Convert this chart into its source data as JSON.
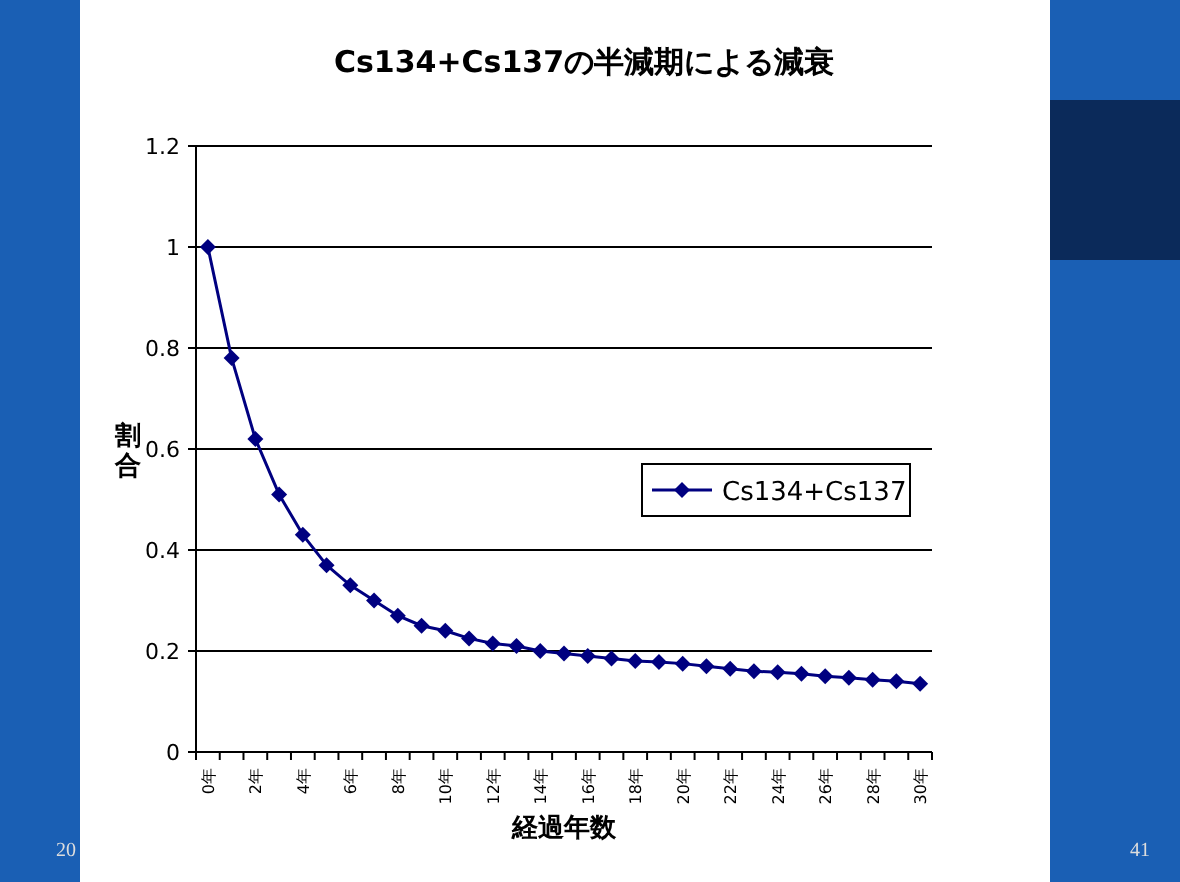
{
  "chart_data": {
    "type": "line",
    "title": "Cs134+Cs137の半減期による減衰",
    "xlabel": "経過年数",
    "ylabel": "割合",
    "categories": [
      "0年",
      null,
      "2年",
      null,
      "4年",
      null,
      "6年",
      null,
      "8年",
      null,
      "10年",
      null,
      "12年",
      null,
      "14年",
      null,
      "16年",
      null,
      "18年",
      null,
      "20年",
      null,
      "22年",
      null,
      "24年",
      null,
      "26年",
      null,
      "28年",
      null,
      "30年"
    ],
    "series": [
      {
        "name": "Cs134+Cs137",
        "color": "#000080",
        "values": [
          1.0,
          0.78,
          0.62,
          0.51,
          0.43,
          0.37,
          0.33,
          0.3,
          0.27,
          0.25,
          0.24,
          0.225,
          0.215,
          0.21,
          0.2,
          0.195,
          0.19,
          0.185,
          0.18,
          0.178,
          0.175,
          0.17,
          0.165,
          0.16,
          0.158,
          0.155,
          0.15,
          0.147,
          0.143,
          0.14,
          0.135
        ]
      }
    ],
    "ylim": [
      0,
      1.2
    ],
    "yticks": [
      0,
      0.2,
      0.4,
      0.6,
      0.8,
      1,
      1.2
    ],
    "grid": "y",
    "legend": "right",
    "marker": "diamond",
    "line_style": "solid",
    "annotations": [
      "20",
      "41"
    ]
  }
}
